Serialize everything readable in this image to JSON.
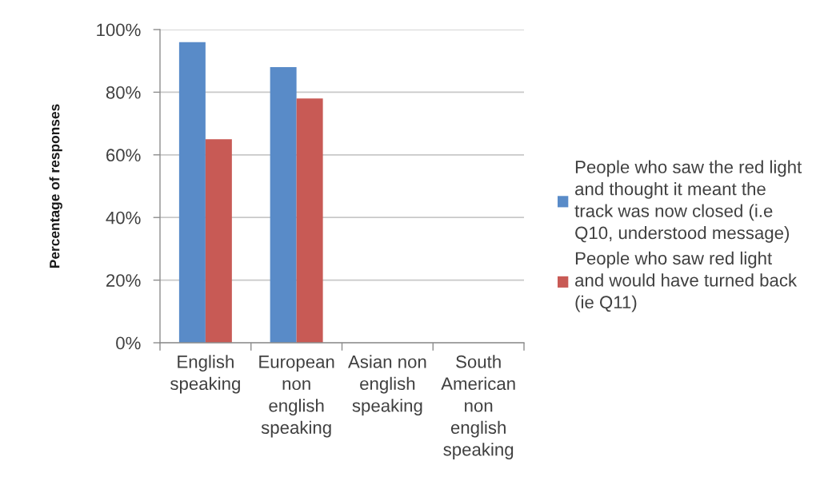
{
  "chart_data": {
    "type": "bar",
    "categories": [
      "English speaking",
      "European non english speaking",
      "Asian non english speaking",
      "South American non english speaking"
    ],
    "series": [
      {
        "name": "People who saw the red light and thought it meant the track was now closed (i.e Q10, understood message)",
        "color": "#598bc8",
        "values": [
          96,
          88,
          null,
          null
        ]
      },
      {
        "name": "People who saw red light and would have turned back (ie Q11)",
        "color": "#c85a55",
        "values": [
          65,
          78,
          null,
          null
        ]
      }
    ],
    "ylabel": "Percentage of responses",
    "ylim": [
      0,
      100
    ],
    "yticks": [
      {
        "value": 0,
        "label": "0%"
      },
      {
        "value": 20,
        "label": "20%"
      },
      {
        "value": 40,
        "label": "40%"
      },
      {
        "value": 60,
        "label": "60%"
      },
      {
        "value": 80,
        "label": "80%"
      },
      {
        "value": 100,
        "label": "100%"
      }
    ],
    "grid": "y",
    "legend": "right"
  }
}
